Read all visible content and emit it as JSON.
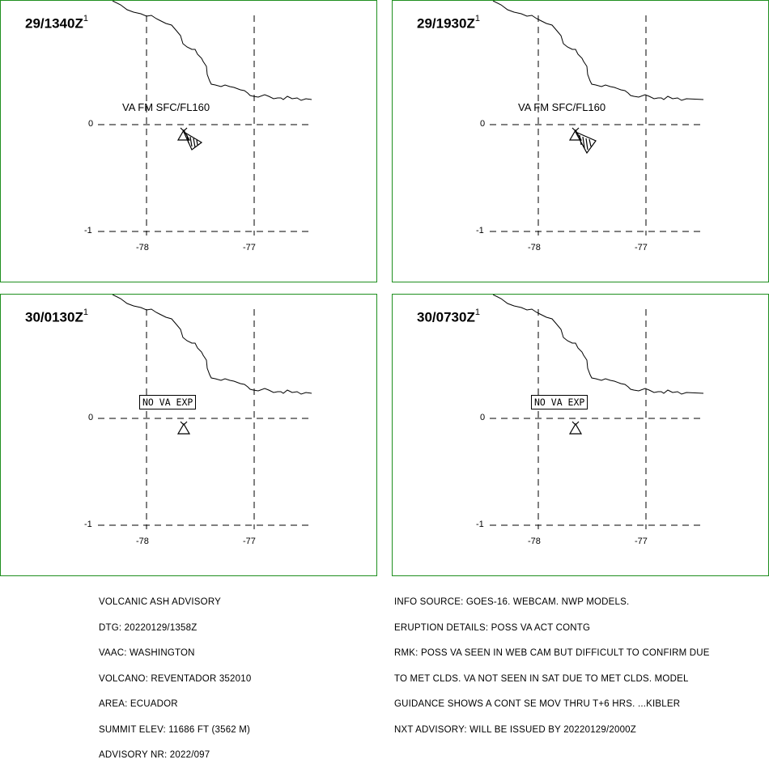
{
  "panels": [
    {
      "id": "p1",
      "time": "29/1340Z",
      "sup": "1",
      "label": "VA FM SFC/FL160",
      "no_va": false
    },
    {
      "id": "p2",
      "time": "29/1930Z",
      "sup": "1",
      "label": "VA FM SFC/FL160",
      "no_va": false
    },
    {
      "id": "p3",
      "time": "30/0130Z",
      "sup": "1",
      "label": "NO VA EXP",
      "no_va": true
    },
    {
      "id": "p4",
      "time": "30/0730Z",
      "sup": "1",
      "label": "NO VA EXP",
      "no_va": true
    }
  ],
  "axes": {
    "lat_labels": [
      "0",
      "-1"
    ],
    "lon_labels": [
      "-78",
      "-77"
    ]
  },
  "advisory_left": [
    "VOLCANIC ASH ADVISORY",
    "DTG: 20220129/1358Z",
    "VAAC: WASHINGTON",
    "VOLCANO: REVENTADOR 352010",
    "AREA: ECUADOR",
    "SUMMIT ELEV: 11686 FT (3562 M)",
    "ADVISORY NR: 2022/097"
  ],
  "advisory_right": [
    "INFO SOURCE: GOES-16. WEBCAM. NWP MODELS.",
    "ERUPTION DETAILS: POSS VA ACT CONTG",
    "RMK: POSS VA SEEN IN WEB CAM BUT DIFFICULT TO CONFIRM DUE",
    "TO MET CLDS. VA NOT SEEN IN SAT DUE TO MET CLDS. MODEL",
    "GUIDANCE SHOWS A CONT SE MOV THRU T+6 HRS. ...KIBLER",
    "NXT ADVISORY: WILL BE ISSUED BY 20220129/2000Z"
  ],
  "colors": {
    "frame": "#1f8f1f",
    "ink": "#000000"
  }
}
